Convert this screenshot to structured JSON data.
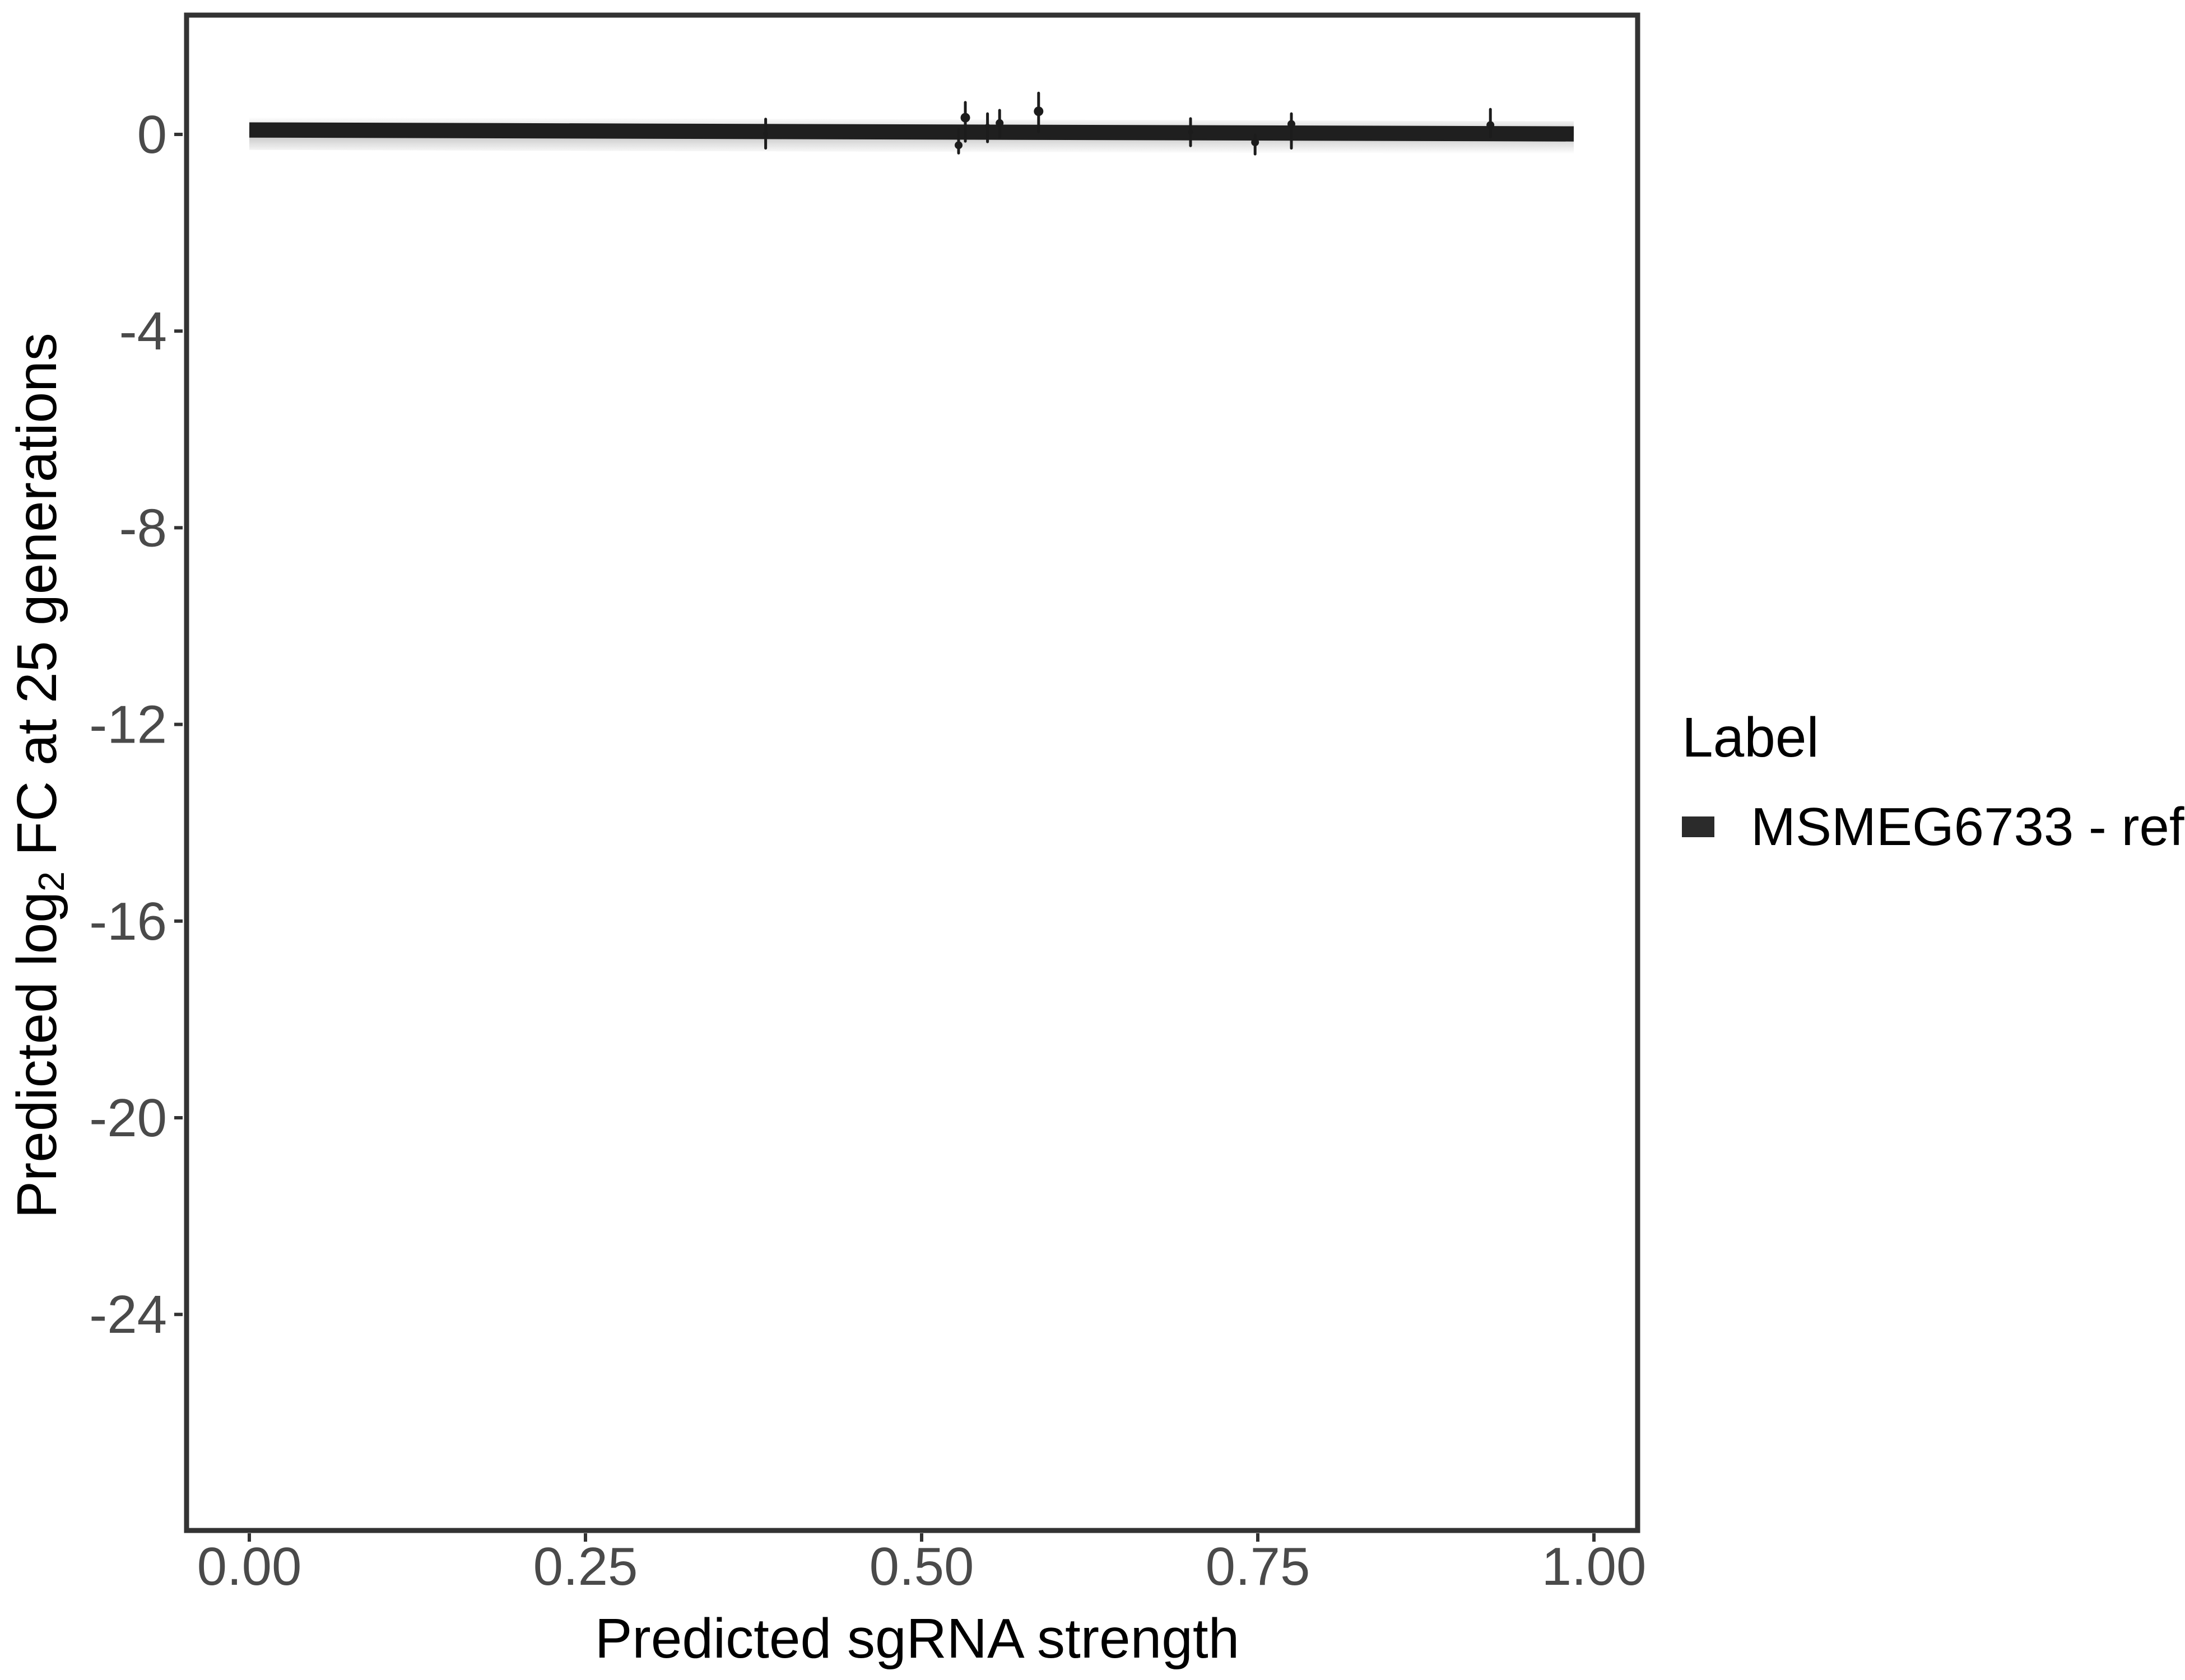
{
  "chart_data": {
    "type": "scatter",
    "title": "",
    "xlabel": "Predicted sgRNA strength",
    "ylabel": "Predicted log2 FC at 25 generations",
    "ylabel_parts": {
      "pre": "Predicted log",
      "sub": "2",
      "post": " FC at 25 generations"
    },
    "xlim": [
      -0.047,
      1.032
    ],
    "ylim": [
      -28.4,
      2.4
    ],
    "grid": false,
    "legend_position": "right",
    "x_ticks": [
      {
        "value": 0.0,
        "label": "0.00"
      },
      {
        "value": 0.25,
        "label": "0.25"
      },
      {
        "value": 0.5,
        "label": "0.50"
      },
      {
        "value": 0.75,
        "label": "0.75"
      },
      {
        "value": 1.0,
        "label": "1.00"
      }
    ],
    "y_ticks": [
      {
        "value": 0,
        "label": "0"
      },
      {
        "value": -4,
        "label": "-4"
      },
      {
        "value": -8,
        "label": "-8"
      },
      {
        "value": -12,
        "label": "-12"
      },
      {
        "value": -16,
        "label": "-16"
      },
      {
        "value": -20,
        "label": "-20"
      },
      {
        "value": -24,
        "label": "-24"
      }
    ],
    "legend": {
      "title": "Label",
      "entries": [
        {
          "label": "MSMEG6733 - ref",
          "key_color": "#2b2b2b"
        }
      ]
    },
    "series": [
      {
        "name": "MSMEG6733 - ref",
        "smooth_line": {
          "x": [
            0.0,
            0.985
          ],
          "y": [
            0.09,
            0.01
          ],
          "thickness": 0.31
        },
        "points": [
          {
            "x": 0.384,
            "y": 0.01,
            "ymin": -0.28,
            "ymax": 0.31,
            "size": "small"
          },
          {
            "x": 0.5275,
            "y": -0.22,
            "ymin": -0.38,
            "ymax": 0.1,
            "size": "medium"
          },
          {
            "x": 0.5325,
            "y": 0.34,
            "ymin": -0.14,
            "ymax": 0.65,
            "size": "large"
          },
          {
            "x": 0.549,
            "y": 0.17,
            "ymin": -0.15,
            "ymax": 0.42,
            "size": "small"
          },
          {
            "x": 0.558,
            "y": 0.23,
            "ymin": -0.05,
            "ymax": 0.49,
            "size": "medium"
          },
          {
            "x": 0.587,
            "y": 0.47,
            "ymin": 0.05,
            "ymax": 0.84,
            "size": "large"
          },
          {
            "x": 0.7,
            "y": 0.05,
            "ymin": -0.23,
            "ymax": 0.32,
            "size": "small"
          },
          {
            "x": 0.748,
            "y": -0.16,
            "ymin": -0.4,
            "ymax": -0.02,
            "size": "medium"
          },
          {
            "x": 0.775,
            "y": 0.21,
            "ymin": -0.28,
            "ymax": 0.42,
            "size": "medium"
          },
          {
            "x": 0.923,
            "y": 0.19,
            "ymin": -0.05,
            "ymax": 0.51,
            "size": "medium"
          }
        ]
      }
    ],
    "colors": {
      "line": "#1f1f1f",
      "point": "#1c1c1c",
      "ribbon": "#9e9e9e",
      "panel_border": "#333333",
      "tick": "#333333",
      "tick_label": "#4a4a4a",
      "axis_title": "#000000",
      "legend_text": "#000000",
      "background": "#ffffff"
    }
  }
}
